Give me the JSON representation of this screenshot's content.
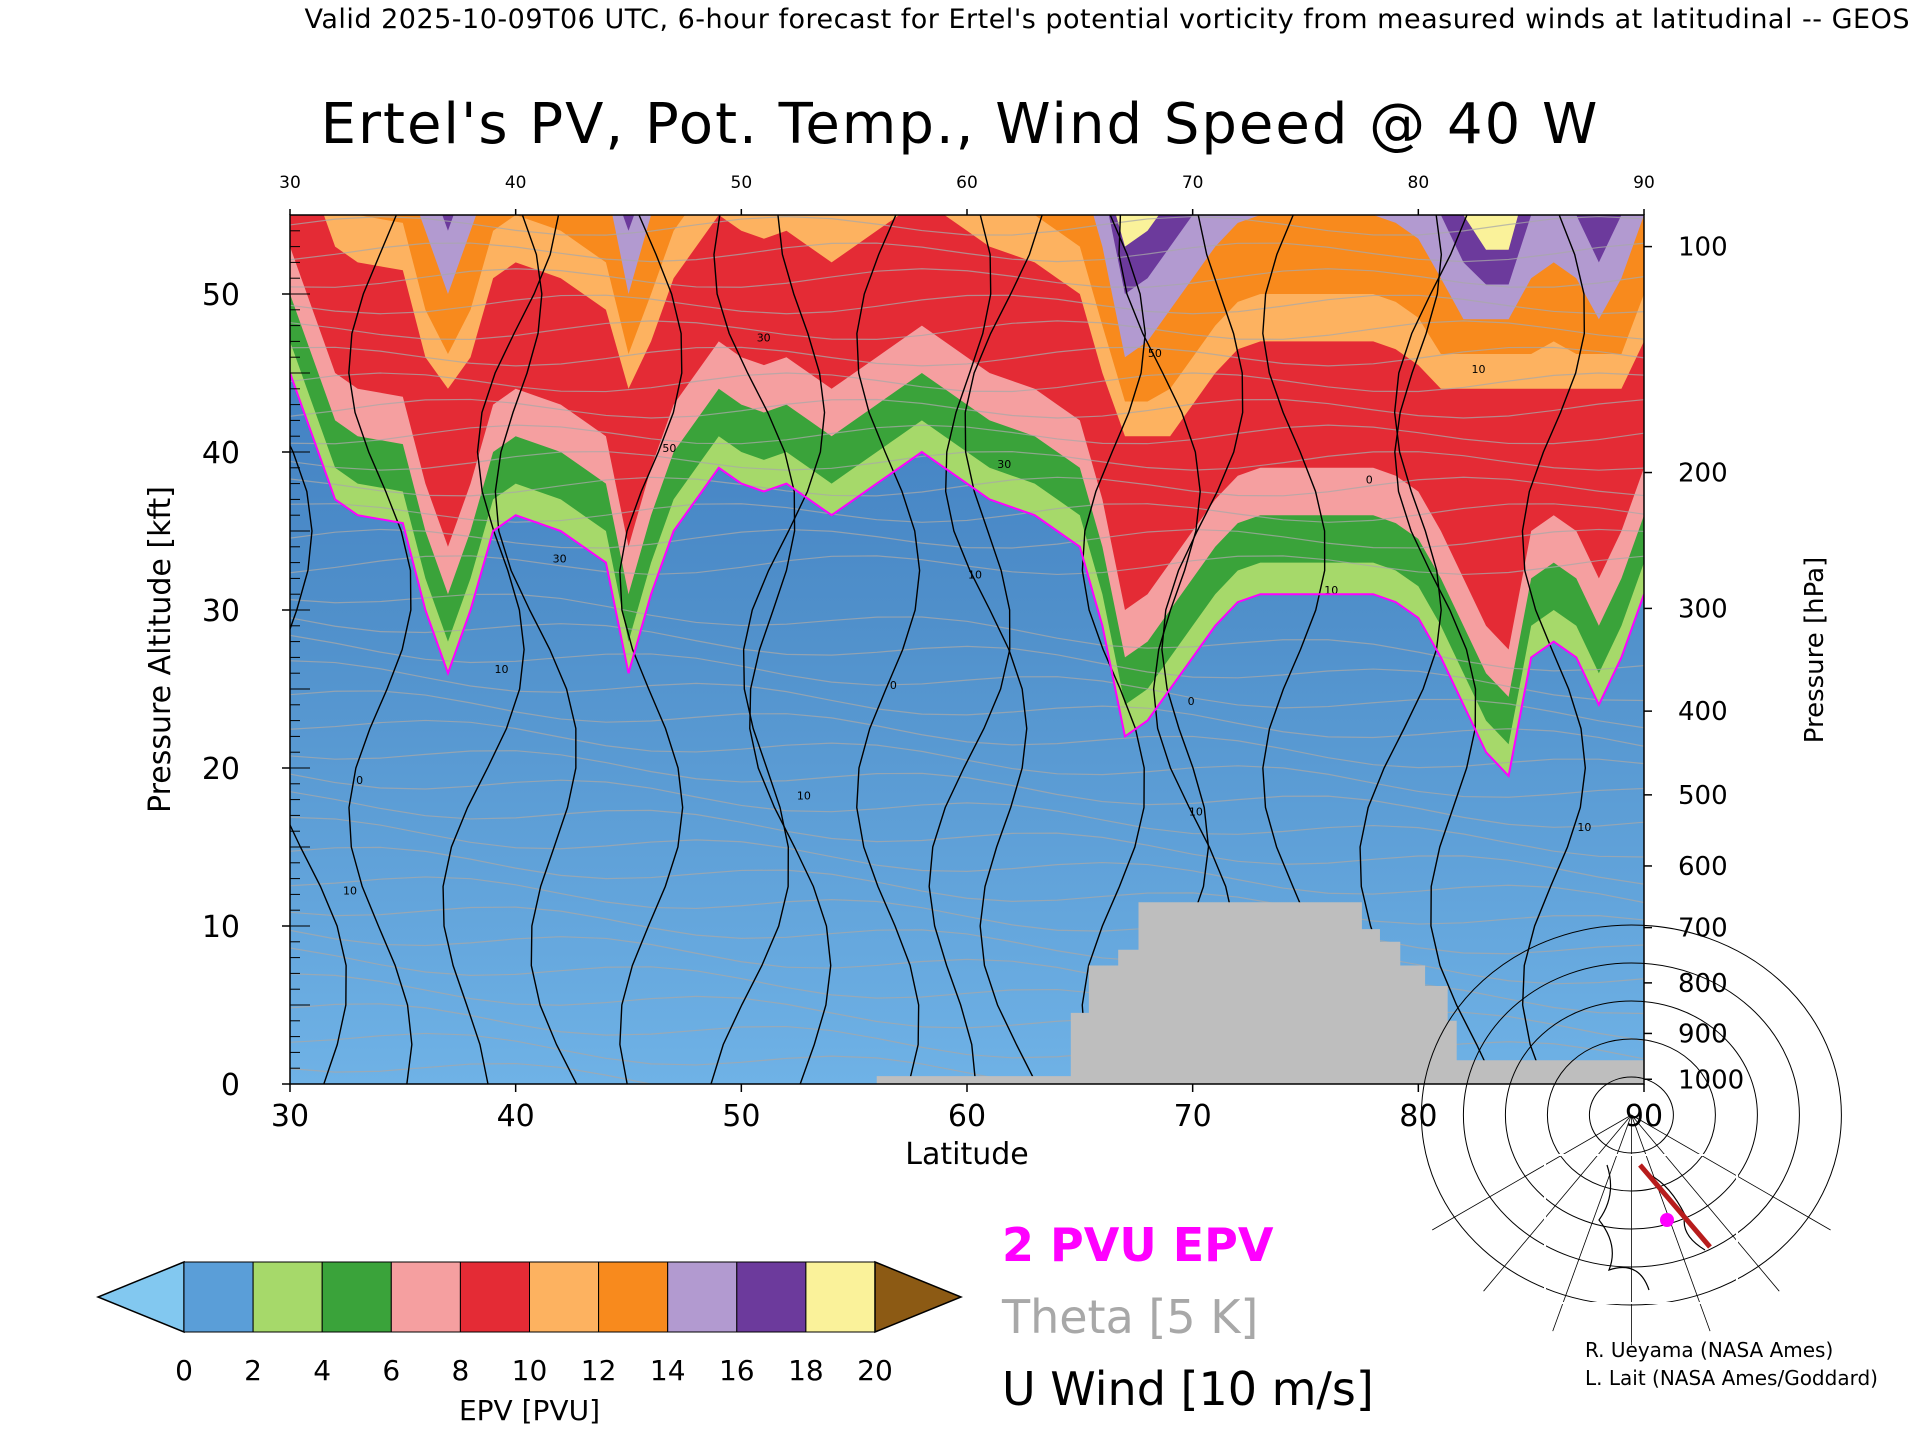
{
  "header": "Valid 2025-10-09T06 UTC, 6-hour forecast for Ertel's potential vorticity from measured winds at latitudinal -- GEOS",
  "chart_data": {
    "type": "heatmap",
    "title": "Ertel's PV, Pot. Temp., Wind Speed @ 40 W",
    "xlabel": "Latitude",
    "ylabel": "Pressure Altitude [kft]",
    "ylabel_right": "Pressure [hPa]",
    "xlim": [
      30,
      90
    ],
    "ylim": [
      0,
      55
    ],
    "x_ticks": [
      30,
      40,
      50,
      60,
      70,
      80,
      90
    ],
    "x_ticks_top": [
      30,
      40,
      50,
      60,
      70,
      80,
      90
    ],
    "y_ticks": [
      0,
      10,
      20,
      30,
      40,
      50
    ],
    "pressure_ticks": [
      {
        "hpa": 100,
        "kft": 53.0
      },
      {
        "hpa": 200,
        "kft": 38.7
      },
      {
        "hpa": 300,
        "kft": 30.1
      },
      {
        "hpa": 400,
        "kft": 23.6
      },
      {
        "hpa": 500,
        "kft": 18.3
      },
      {
        "hpa": 600,
        "kft": 13.8
      },
      {
        "hpa": 700,
        "kft": 9.9
      },
      {
        "hpa": 800,
        "kft": 6.4
      },
      {
        "hpa": 900,
        "kft": 3.2
      },
      {
        "hpa": 1000,
        "kft": 0.3
      }
    ],
    "tropopause_2pvu": [
      [
        30,
        45
      ],
      [
        31,
        41
      ],
      [
        32,
        37
      ],
      [
        33,
        36
      ],
      [
        35,
        35.5
      ],
      [
        36,
        30
      ],
      [
        37,
        26
      ],
      [
        38,
        30
      ],
      [
        39,
        35
      ],
      [
        40,
        36
      ],
      [
        41,
        35.5
      ],
      [
        42,
        35
      ],
      [
        43,
        34
      ],
      [
        44,
        33
      ],
      [
        45,
        26
      ],
      [
        46,
        31
      ],
      [
        47,
        35
      ],
      [
        48,
        37
      ],
      [
        49,
        39
      ],
      [
        50,
        38
      ],
      [
        51,
        37.5
      ],
      [
        52,
        38
      ],
      [
        53,
        37
      ],
      [
        54,
        36
      ],
      [
        55,
        37
      ],
      [
        56,
        38
      ],
      [
        57,
        39
      ],
      [
        58,
        40
      ],
      [
        59,
        39
      ],
      [
        60,
        38
      ],
      [
        61,
        37
      ],
      [
        62,
        36.5
      ],
      [
        63,
        36
      ],
      [
        64,
        35
      ],
      [
        65,
        34
      ],
      [
        66,
        29
      ],
      [
        67,
        22
      ],
      [
        68,
        23
      ],
      [
        69,
        25
      ],
      [
        70,
        27
      ],
      [
        71,
        29
      ],
      [
        72,
        30.5
      ],
      [
        73,
        31
      ],
      [
        74,
        31
      ],
      [
        75,
        31
      ],
      [
        76,
        31
      ],
      [
        77,
        31
      ],
      [
        78,
        31
      ],
      [
        79,
        30.5
      ],
      [
        80,
        29.5
      ],
      [
        81,
        27
      ],
      [
        82,
        24
      ],
      [
        83,
        21
      ],
      [
        84,
        19.5
      ],
      [
        85,
        27
      ],
      [
        86,
        28
      ],
      [
        87,
        27
      ],
      [
        88,
        24
      ],
      [
        89,
        27
      ],
      [
        90,
        31
      ]
    ],
    "terrain_mask_kft": [
      [
        30,
        0
      ],
      [
        56,
        0
      ],
      [
        56,
        0.5
      ],
      [
        64.6,
        0.5
      ],
      [
        64.6,
        4.5
      ],
      [
        65.4,
        4.5
      ],
      [
        65.4,
        7.5
      ],
      [
        66.7,
        7.5
      ],
      [
        66.7,
        8.5
      ],
      [
        67.6,
        8.5
      ],
      [
        67.6,
        11.5
      ],
      [
        77.5,
        11.5
      ],
      [
        77.5,
        9.8
      ],
      [
        78.3,
        9.8
      ],
      [
        78.3,
        9.0
      ],
      [
        79.2,
        9.0
      ],
      [
        79.2,
        7.5
      ],
      [
        80.3,
        7.5
      ],
      [
        80.3,
        6.2
      ],
      [
        81.3,
        6.2
      ],
      [
        81.3,
        4.0
      ],
      [
        81.7,
        4.0
      ],
      [
        81.7,
        1.5
      ],
      [
        90,
        1.5
      ]
    ],
    "colorbar": {
      "label": "EPV [PVU]",
      "ticks": [
        0,
        2,
        4,
        6,
        8,
        10,
        12,
        14,
        16,
        18,
        20
      ],
      "colors": [
        "#82c8f0",
        "#5a9ed8",
        "#a6d96a",
        "#3aa33a",
        "#f59fa0",
        "#e42b35",
        "#fdb260",
        "#f88a1d",
        "#b29ad0",
        "#6c3a9c",
        "#faf29a",
        "#8c5a14"
      ],
      "under": "#82c8f0",
      "over": "#8c5a14"
    },
    "legend": [
      {
        "label": "2 PVU EPV",
        "color": "#ff00ff"
      },
      {
        "label": "Theta [5 K]",
        "color": "#a8a8a8"
      },
      {
        "label": "U Wind [10 m/s]",
        "color": "#000000"
      }
    ],
    "contour_labels": [
      "10",
      "0",
      "10",
      "30",
      "50",
      "30",
      "10",
      "0",
      "10",
      "30",
      "50",
      "10",
      "0",
      "10",
      "0",
      "10",
      "10"
    ]
  },
  "credits": {
    "line1": "R. Ueyama (NASA Ames)",
    "line2": "L. Lait (NASA Ames/Goddard)"
  },
  "colors": {
    "tropopause": "#ff00ff",
    "terrain": "#bebebe",
    "theta": "#a8a8a8",
    "wind": "#000000"
  }
}
